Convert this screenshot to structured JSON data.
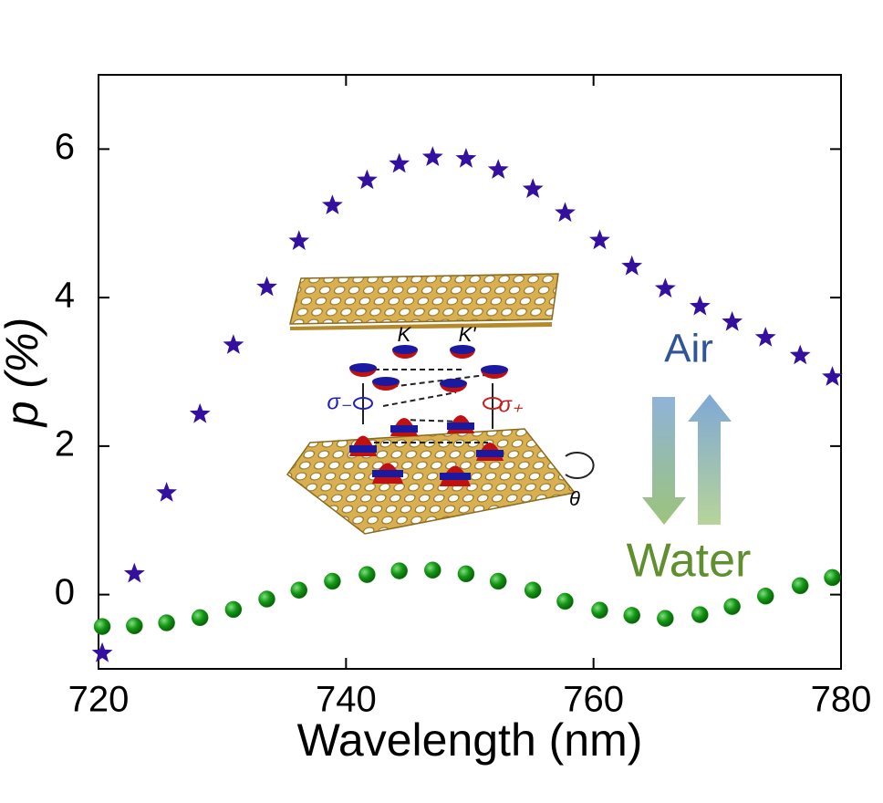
{
  "chart_data": {
    "type": "scatter",
    "xlabel": "Wavelength (nm)",
    "ylabel": "p (%)",
    "x": [
      720.3,
      722.9,
      725.5,
      728.2,
      730.9,
      733.6,
      736.2,
      738.9,
      741.7,
      744.3,
      747.0,
      749.7,
      752.3,
      755.1,
      757.7,
      760.5,
      763.1,
      765.8,
      768.6,
      771.2,
      773.9,
      776.7,
      779.3
    ],
    "series": [
      {
        "color": "#34109e",
        "marker": "star",
        "values": [
          -0.79,
          0.28,
          1.37,
          2.43,
          3.36,
          4.14,
          4.76,
          5.24,
          5.58,
          5.8,
          5.89,
          5.87,
          5.72,
          5.46,
          5.14,
          4.77,
          4.42,
          4.12,
          3.88,
          3.67,
          3.46,
          3.22,
          2.93
        ]
      },
      {
        "color": "#149614",
        "marker": "circle",
        "values": [
          -0.43,
          -0.42,
          -0.38,
          -0.31,
          -0.2,
          -0.06,
          0.06,
          0.18,
          0.27,
          0.32,
          0.33,
          0.28,
          0.18,
          0.06,
          -0.09,
          -0.21,
          -0.28,
          -0.32,
          -0.27,
          -0.16,
          -0.02,
          0.12,
          0.23
        ]
      }
    ],
    "xlim": [
      720,
      780
    ],
    "ylim": [
      -1,
      7
    ],
    "xticks": [
      720,
      740,
      760,
      780
    ],
    "yticks": [
      0,
      2,
      4,
      6
    ],
    "annotations": [
      {
        "text": "K",
        "color": "#000000"
      },
      {
        "text": "K'",
        "color": "#000000"
      },
      {
        "text": "σ₋",
        "color": "#2020c0"
      },
      {
        "text": "σ₊",
        "color": "#c02020"
      },
      {
        "text": "θ",
        "color": "#000000"
      },
      {
        "text": "Air",
        "color": "#2f5597"
      },
      {
        "text": "Water",
        "color": "#5f8f2f"
      }
    ]
  }
}
